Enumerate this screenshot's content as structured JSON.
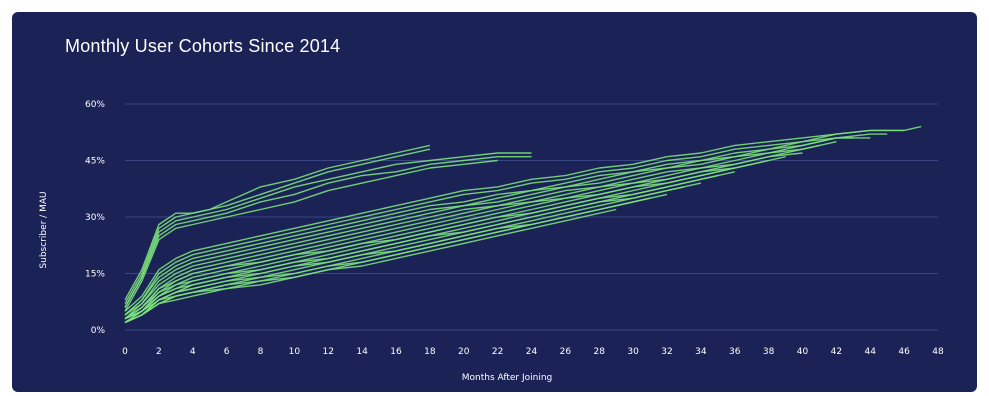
{
  "chart_data": {
    "type": "line",
    "title": "Monthly User Cohorts Since 2014",
    "xlabel": "Months After Joining",
    "ylabel": "Subscriber / MAU",
    "xlim": [
      0,
      48
    ],
    "ylim": [
      0,
      60
    ],
    "x_ticks": [
      "0",
      "2",
      "4",
      "6",
      "8",
      "10",
      "12",
      "14",
      "16",
      "18",
      "20",
      "22",
      "24",
      "26",
      "28",
      "30",
      "32",
      "34",
      "36",
      "38",
      "40",
      "42",
      "44",
      "46",
      "48"
    ],
    "y_ticks": [
      "0%",
      "15%",
      "30%",
      "45%",
      "60%"
    ],
    "grid": "horizontal",
    "line_color": "#7be07b",
    "series": [
      {
        "x": [
          0,
          1,
          2,
          3,
          4,
          5,
          6,
          8,
          10,
          12,
          14,
          16,
          18
        ],
        "y": [
          8,
          16,
          28,
          31,
          31,
          32,
          34,
          38,
          40,
          43,
          45,
          47,
          49
        ]
      },
      {
        "x": [
          0,
          1,
          2,
          3,
          4,
          5,
          6,
          8,
          10,
          12,
          14,
          16,
          18
        ],
        "y": [
          7,
          15,
          27,
          30,
          31,
          32,
          33,
          36,
          39,
          42,
          44,
          46,
          48
        ]
      },
      {
        "x": [
          0,
          1,
          2,
          3,
          4,
          6,
          8,
          10,
          12,
          14,
          16,
          18,
          20,
          22,
          24
        ],
        "y": [
          6,
          14,
          26,
          29,
          30,
          32,
          35,
          38,
          40,
          42,
          44,
          45,
          46,
          47,
          47
        ]
      },
      {
        "x": [
          0,
          1,
          2,
          3,
          4,
          6,
          8,
          10,
          12,
          14,
          16,
          18,
          20,
          22,
          24
        ],
        "y": [
          6,
          14,
          25,
          28,
          29,
          31,
          34,
          36,
          39,
          41,
          42,
          44,
          45,
          46,
          46
        ]
      },
      {
        "x": [
          0,
          1,
          2,
          3,
          4,
          6,
          8,
          10,
          12,
          14,
          16,
          18,
          20,
          22
        ],
        "y": [
          5,
          13,
          24,
          27,
          28,
          30,
          32,
          34,
          37,
          39,
          41,
          43,
          44,
          45
        ]
      },
      {
        "x": [
          0,
          1,
          2,
          3,
          4,
          6,
          8,
          10,
          12,
          14,
          16,
          18,
          20,
          22,
          24,
          26,
          28,
          30,
          32,
          34,
          36,
          38,
          40,
          42,
          44,
          46,
          47
        ],
        "y": [
          5,
          9,
          16,
          19,
          21,
          23,
          25,
          27,
          29,
          31,
          33,
          35,
          37,
          38,
          40,
          41,
          43,
          44,
          46,
          47,
          49,
          50,
          51,
          52,
          53,
          53,
          54
        ]
      },
      {
        "x": [
          0,
          1,
          2,
          3,
          4,
          6,
          8,
          10,
          12,
          14,
          16,
          18,
          20,
          22,
          24,
          26,
          28,
          30,
          32,
          34,
          36,
          38,
          40,
          42,
          44,
          46
        ],
        "y": [
          4,
          8,
          15,
          18,
          20,
          22,
          24,
          26,
          28,
          30,
          32,
          34,
          36,
          37,
          39,
          40,
          42,
          43,
          45,
          46,
          48,
          49,
          50,
          52,
          53,
          53
        ]
      },
      {
        "x": [
          0,
          1,
          2,
          3,
          4,
          6,
          8,
          10,
          12,
          14,
          16,
          18,
          20,
          22,
          24,
          26,
          28,
          30,
          32,
          34,
          36,
          38,
          40,
          42,
          44,
          45
        ],
        "y": [
          4,
          8,
          14,
          17,
          19,
          21,
          23,
          25,
          27,
          29,
          31,
          33,
          34,
          36,
          37,
          39,
          41,
          42,
          44,
          45,
          47,
          48,
          50,
          51,
          52,
          52
        ]
      },
      {
        "x": [
          0,
          1,
          2,
          3,
          4,
          6,
          8,
          10,
          12,
          14,
          16,
          18,
          20,
          22,
          24,
          26,
          28,
          30,
          32,
          34,
          36,
          38,
          40,
          42,
          44
        ],
        "y": [
          4,
          7,
          13,
          16,
          18,
          20,
          22,
          24,
          26,
          28,
          30,
          32,
          33,
          35,
          37,
          38,
          40,
          42,
          43,
          45,
          46,
          48,
          49,
          51,
          51
        ]
      },
      {
        "x": [
          0,
          1,
          2,
          3,
          4,
          6,
          8,
          10,
          12,
          14,
          16,
          18,
          20,
          22,
          24,
          26,
          28,
          30,
          32,
          34,
          36,
          38,
          40,
          42,
          43
        ],
        "y": [
          3,
          7,
          12,
          15,
          17,
          19,
          21,
          23,
          25,
          27,
          29,
          31,
          33,
          34,
          36,
          38,
          39,
          41,
          43,
          44,
          46,
          47,
          49,
          51,
          51
        ]
      },
      {
        "x": [
          0,
          1,
          2,
          3,
          4,
          6,
          8,
          10,
          12,
          14,
          16,
          18,
          20,
          22,
          24,
          26,
          28,
          30,
          32,
          34,
          36,
          38,
          40,
          42
        ],
        "y": [
          3,
          6,
          11,
          14,
          16,
          18,
          20,
          22,
          24,
          26,
          28,
          30,
          32,
          33,
          35,
          37,
          38,
          40,
          42,
          43,
          45,
          47,
          48,
          50
        ]
      },
      {
        "x": [
          0,
          1,
          2,
          3,
          4,
          6,
          8,
          10,
          12,
          14,
          16,
          18,
          20,
          22,
          24,
          26,
          28,
          30,
          32,
          34,
          36,
          38,
          40,
          41
        ],
        "y": [
          3,
          6,
          11,
          13,
          15,
          17,
          19,
          21,
          23,
          25,
          27,
          29,
          31,
          33,
          34,
          36,
          38,
          39,
          41,
          43,
          44,
          46,
          48,
          49
        ]
      },
      {
        "x": [
          0,
          1,
          2,
          3,
          4,
          6,
          8,
          10,
          12,
          14,
          16,
          18,
          20,
          22,
          24,
          26,
          28,
          30,
          32,
          34,
          36,
          38,
          40
        ],
        "y": [
          3,
          6,
          10,
          13,
          15,
          17,
          18,
          20,
          22,
          24,
          26,
          28,
          30,
          32,
          34,
          35,
          37,
          39,
          40,
          42,
          44,
          46,
          47
        ]
      },
      {
        "x": [
          0,
          1,
          2,
          3,
          4,
          6,
          8,
          10,
          12,
          14,
          16,
          18,
          20,
          22,
          24,
          26,
          28,
          30,
          32,
          34,
          36,
          38,
          39
        ],
        "y": [
          3,
          5,
          10,
          12,
          14,
          16,
          18,
          20,
          21,
          23,
          25,
          27,
          29,
          31,
          33,
          35,
          36,
          38,
          40,
          42,
          43,
          45,
          46
        ]
      },
      {
        "x": [
          0,
          1,
          2,
          3,
          4,
          6,
          8,
          10,
          12,
          14,
          16,
          18,
          20,
          22,
          24,
          26,
          28,
          30,
          32,
          34,
          36,
          38
        ],
        "y": [
          3,
          5,
          9,
          12,
          13,
          15,
          17,
          19,
          21,
          23,
          24,
          26,
          28,
          30,
          32,
          34,
          36,
          38,
          39,
          41,
          43,
          45
        ]
      },
      {
        "x": [
          0,
          1,
          2,
          3,
          4,
          6,
          8,
          10,
          12,
          14,
          16,
          18,
          20,
          22,
          24,
          26,
          28,
          30,
          32,
          34,
          36,
          37
        ],
        "y": [
          3,
          5,
          9,
          11,
          13,
          15,
          16,
          18,
          20,
          22,
          24,
          26,
          28,
          30,
          31,
          33,
          35,
          37,
          39,
          41,
          43,
          44
        ]
      },
      {
        "x": [
          0,
          1,
          2,
          3,
          4,
          6,
          8,
          10,
          12,
          14,
          16,
          18,
          20,
          22,
          24,
          26,
          28,
          30,
          32,
          34,
          36
        ],
        "y": [
          2,
          5,
          9,
          11,
          12,
          14,
          16,
          18,
          19,
          21,
          23,
          25,
          27,
          29,
          31,
          33,
          35,
          36,
          38,
          40,
          42
        ]
      },
      {
        "x": [
          0,
          1,
          2,
          3,
          4,
          6,
          8,
          10,
          12,
          14,
          16,
          18,
          20,
          22,
          24,
          26,
          28,
          30,
          32,
          34,
          35
        ],
        "y": [
          2,
          5,
          8,
          10,
          12,
          14,
          15,
          17,
          19,
          21,
          23,
          25,
          26,
          28,
          30,
          32,
          34,
          36,
          38,
          40,
          41
        ]
      },
      {
        "x": [
          0,
          1,
          2,
          3,
          4,
          6,
          8,
          10,
          12,
          14,
          16,
          18,
          20,
          22,
          24,
          26,
          28,
          30,
          32,
          34
        ],
        "y": [
          2,
          4,
          8,
          10,
          11,
          13,
          15,
          17,
          18,
          20,
          22,
          24,
          26,
          28,
          30,
          32,
          34,
          35,
          37,
          39
        ]
      },
      {
        "x": [
          0,
          1,
          2,
          3,
          4,
          6,
          8,
          10,
          12,
          14,
          16,
          18,
          20,
          22,
          24,
          26,
          28,
          30,
          32,
          33
        ],
        "y": [
          2,
          4,
          8,
          10,
          11,
          13,
          14,
          16,
          18,
          20,
          21,
          23,
          25,
          27,
          29,
          31,
          33,
          35,
          37,
          38
        ]
      },
      {
        "x": [
          0,
          1,
          2,
          3,
          4,
          6,
          8,
          10,
          12,
          14,
          16,
          18,
          20,
          22,
          24,
          26,
          28,
          30,
          32
        ],
        "y": [
          2,
          4,
          8,
          9,
          10,
          12,
          14,
          15,
          17,
          19,
          21,
          23,
          25,
          27,
          28,
          30,
          32,
          34,
          36
        ]
      },
      {
        "x": [
          0,
          1,
          2,
          3,
          4,
          6,
          8,
          10,
          12,
          14,
          16,
          18,
          20,
          22,
          24,
          26,
          28,
          30,
          31
        ],
        "y": [
          2,
          4,
          7,
          9,
          10,
          12,
          13,
          15,
          17,
          18,
          20,
          22,
          24,
          26,
          28,
          30,
          32,
          34,
          35
        ]
      },
      {
        "x": [
          0,
          1,
          2,
          3,
          4,
          6,
          8,
          10,
          12,
          14,
          16,
          18,
          20,
          22,
          24,
          26,
          28,
          30
        ],
        "y": [
          2,
          4,
          7,
          9,
          10,
          11,
          13,
          14,
          16,
          18,
          20,
          22,
          24,
          26,
          28,
          30,
          32,
          34
        ]
      },
      {
        "x": [
          0,
          1,
          2,
          3,
          4,
          6,
          8,
          10,
          12,
          14,
          16,
          18,
          20,
          22,
          24,
          26,
          28,
          29
        ],
        "y": [
          2,
          4,
          7,
          8,
          9,
          11,
          12,
          14,
          16,
          17,
          19,
          21,
          23,
          25,
          27,
          29,
          31,
          32
        ]
      }
    ]
  }
}
